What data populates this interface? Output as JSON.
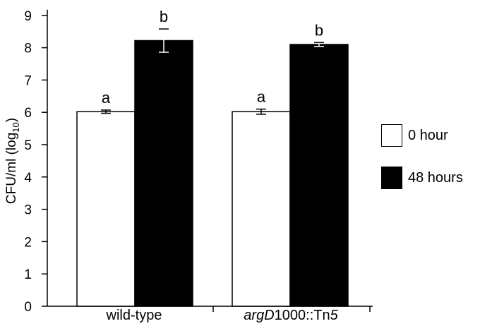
{
  "chart_data": {
    "type": "bar",
    "categories": [
      "wild-type",
      "argD1000::Tn5"
    ],
    "category_parts": [
      {
        "italic": "",
        "mid": "wild-type",
        "italic2": ""
      },
      {
        "italic": "argD",
        "mid": "1000::Tn",
        "italic2": "5"
      }
    ],
    "ylabel": {
      "main": "CFU/ml  (log",
      "sub": "10",
      "close": ")"
    },
    "ylim": [
      0,
      9
    ],
    "yticks": [
      0,
      1,
      2,
      3,
      4,
      5,
      6,
      7,
      8,
      9
    ],
    "series": [
      {
        "name": "0 hour",
        "color": "#ffffff",
        "values": [
          6.02,
          6.02
        ],
        "errors": [
          0.05,
          0.08
        ],
        "labels": [
          "a",
          "a"
        ]
      },
      {
        "name": "48 hours",
        "color": "#000000",
        "values": [
          8.22,
          8.1
        ],
        "errors": [
          0.36,
          0.06
        ],
        "labels": [
          "b",
          "b"
        ]
      }
    ],
    "legend_position": "right",
    "grid": false
  }
}
